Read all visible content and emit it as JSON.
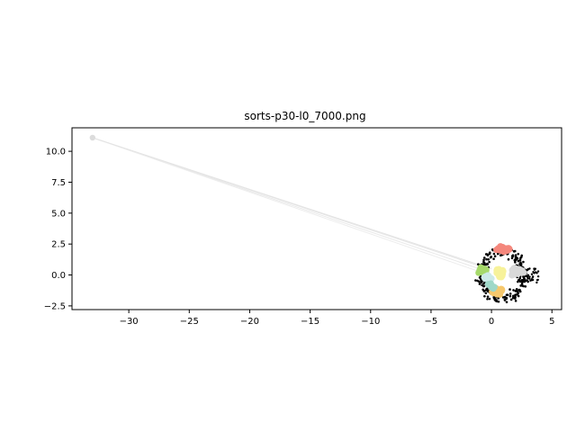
{
  "chart_data": {
    "type": "scatter",
    "title": "sorts-p30-l0_7000.png",
    "xlabel": "",
    "ylabel": "",
    "xlim": [
      -34.7,
      5.8
    ],
    "ylim": [
      -2.8,
      11.9
    ],
    "xticks": [
      -30,
      -25,
      -20,
      -15,
      -10,
      -5,
      0,
      5
    ],
    "xtick_labels": [
      "−30",
      "−25",
      "−20",
      "−15",
      "−10",
      "−5",
      "0",
      "5"
    ],
    "yticks": [
      -2.5,
      0.0,
      2.5,
      5.0,
      7.5,
      10.0
    ],
    "ytick_labels": [
      "−2.5",
      "0.0",
      "2.5",
      "5.0",
      "7.5",
      "10.0"
    ],
    "grid": false,
    "legend": "none",
    "outlier": {
      "x": -33.0,
      "y": 11.1,
      "color": "#dcdcdc"
    },
    "trails": [
      {
        "from": [
          -33.0,
          11.1
        ],
        "to": [
          -0.6,
          0.6
        ],
        "color": "#e6e6e6"
      },
      {
        "from": [
          -33.0,
          11.1
        ],
        "to": [
          -0.4,
          0.3
        ],
        "color": "#e8e8e8"
      },
      {
        "from": [
          -33.0,
          11.1
        ],
        "to": [
          -0.2,
          0.0
        ],
        "color": "#ececec"
      },
      {
        "from": [
          -33.0,
          11.1
        ],
        "to": [
          0.0,
          0.5
        ],
        "color": "#e4e4e4"
      }
    ],
    "ring": {
      "center": [
        0.9,
        0.0
      ],
      "rx": 2.0,
      "ry": 2.2,
      "color": "#000000"
    },
    "series": [
      {
        "color": "#f4877c",
        "points": [
          [
            0.6,
            2.1
          ],
          [
            1.0,
            2.1
          ],
          [
            1.4,
            2.1
          ],
          [
            0.8,
            2.2
          ],
          [
            1.2,
            2.0
          ]
        ]
      },
      {
        "color": "#a6d96a",
        "points": [
          [
            -0.9,
            0.3
          ],
          [
            -0.6,
            0.2
          ],
          [
            -0.8,
            0.5
          ],
          [
            -0.5,
            0.4
          ]
        ]
      },
      {
        "color": "#f7f29a",
        "points": [
          [
            0.5,
            0.2
          ],
          [
            0.8,
            0.1
          ],
          [
            0.6,
            0.4
          ],
          [
            0.9,
            0.3
          ],
          [
            0.7,
            -0.1
          ]
        ]
      },
      {
        "color": "#cdeae8",
        "points": [
          [
            -0.5,
            -0.2
          ],
          [
            -0.2,
            -0.4
          ],
          [
            -0.3,
            -0.1
          ]
        ]
      },
      {
        "color": "#f6c86d",
        "points": [
          [
            0.2,
            -1.4
          ],
          [
            0.5,
            -1.5
          ],
          [
            0.8,
            -1.2
          ],
          [
            0.3,
            -1.2
          ],
          [
            0.6,
            -1.4
          ]
        ]
      },
      {
        "color": "#9fd8c8",
        "points": [
          [
            -0.1,
            -0.8
          ],
          [
            0.1,
            -1.0
          ]
        ]
      },
      {
        "color": "#d9d9d9",
        "points": [
          [
            2.0,
            0.2
          ],
          [
            2.3,
            0.4
          ],
          [
            1.8,
            0.1
          ],
          [
            2.5,
            0.3
          ],
          [
            1.9,
            0.5
          ]
        ]
      }
    ]
  }
}
